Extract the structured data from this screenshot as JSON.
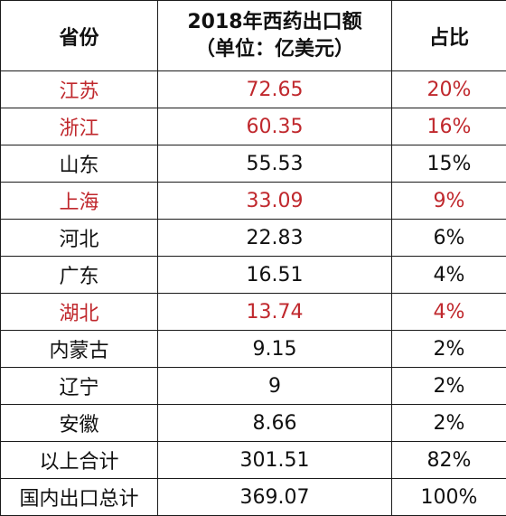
{
  "chart_data": {
    "type": "table",
    "columns": [
      "省份",
      "2018年西药出口额",
      "（单位：亿美元）",
      "占比"
    ],
    "rows": [
      {
        "province": "江苏",
        "value": "72.65",
        "share": "20%",
        "highlight": true
      },
      {
        "province": "浙江",
        "value": "60.35",
        "share": "16%",
        "highlight": true
      },
      {
        "province": "山东",
        "value": "55.53",
        "share": "15%",
        "highlight": false
      },
      {
        "province": "上海",
        "value": "33.09",
        "share": "9%",
        "highlight": true
      },
      {
        "province": "河北",
        "value": "22.83",
        "share": "6%",
        "highlight": false
      },
      {
        "province": "广东",
        "value": "16.51",
        "share": "4%",
        "highlight": false
      },
      {
        "province": "湖北",
        "value": "13.74",
        "share": "4%",
        "highlight": true
      },
      {
        "province": "内蒙古",
        "value": "9.15",
        "share": "2%",
        "highlight": false
      },
      {
        "province": "辽宁",
        "value": "9",
        "share": "2%",
        "highlight": false
      },
      {
        "province": "安徽",
        "value": "8.66",
        "share": "2%",
        "highlight": false
      }
    ],
    "totals": [
      {
        "label": "以上合计",
        "value": "301.51",
        "share": "82%"
      },
      {
        "label": "国内出口总计",
        "value": "369.07",
        "share": "100%"
      }
    ],
    "highlight_color": "#c0282d",
    "text_color": "#111111"
  }
}
